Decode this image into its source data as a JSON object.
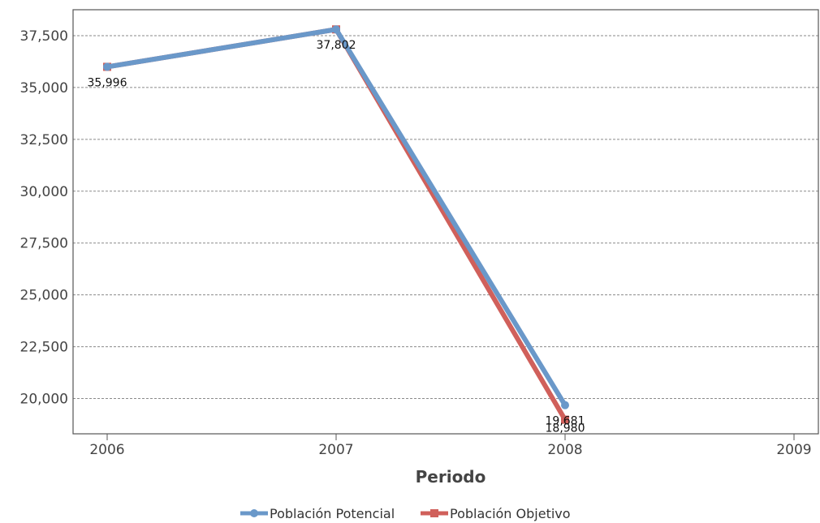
{
  "chart_data": {
    "type": "line",
    "title": "",
    "xlabel": "Periodo",
    "ylabel": "",
    "categories": [
      "2006",
      "2007",
      "2008",
      "2009"
    ],
    "ylim": [
      18300,
      38750
    ],
    "yticks": [
      20000,
      22500,
      25000,
      27500,
      30000,
      32500,
      35000,
      37500
    ],
    "ytick_labels": [
      "20,000",
      "22,500",
      "25,000",
      "27,500",
      "30,000",
      "32,500",
      "35,000",
      "37,500"
    ],
    "grid": true,
    "legend_position": "bottom",
    "series": [
      {
        "name": "Población Potencial",
        "color": "#6a98c9",
        "marker": "circle",
        "values": [
          35996,
          37802,
          19681,
          null
        ],
        "labels": [
          "35,996",
          "37,802",
          "19,681",
          ""
        ]
      },
      {
        "name": "Población Objetivo",
        "color": "#d0605b",
        "marker": "square",
        "values": [
          35996,
          37802,
          18980,
          null
        ],
        "labels": [
          "",
          "",
          "18,980",
          ""
        ]
      }
    ]
  }
}
